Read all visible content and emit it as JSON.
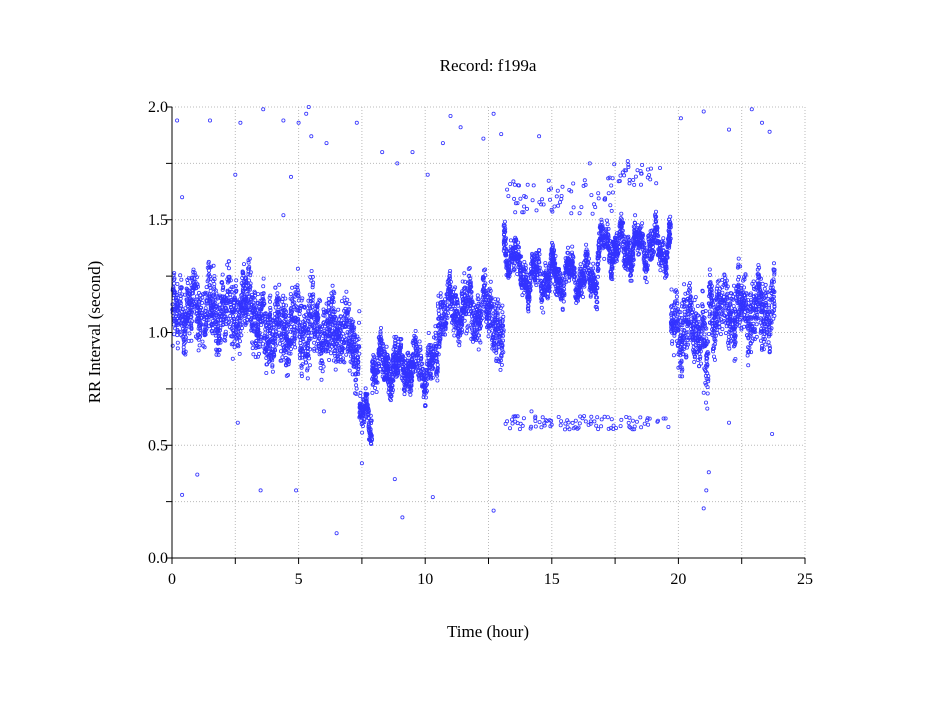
{
  "chart_data": {
    "type": "scatter",
    "title": "Record:  f199a",
    "xlabel": "Time (hour)",
    "ylabel": "RR Interval (second)",
    "xlim": [
      0,
      25
    ],
    "ylim": [
      0,
      2.0
    ],
    "xticks": [
      "0",
      "5",
      "10",
      "15",
      "20",
      "25"
    ],
    "xtick_values": [
      0,
      5,
      10,
      15,
      20,
      25
    ],
    "yticks": [
      "0.0",
      "0.5",
      "1.0",
      "1.5",
      "2.0"
    ],
    "ytick_values": [
      0,
      0.5,
      1.0,
      1.5,
      2.0
    ],
    "grid": true,
    "grid_step_x": 2.5,
    "grid_step_y": 0.25,
    "marker_color": "#3333ff",
    "series": [
      {
        "name": "RR intervals",
        "trend_segments_hours_center_halfspread": [
          [
            0.0,
            0.3,
            1.05,
            0.2
          ],
          [
            0.3,
            3.0,
            1.1,
            0.2
          ],
          [
            3.0,
            3.3,
            1.15,
            0.22
          ],
          [
            3.3,
            6.8,
            1.02,
            0.22
          ],
          [
            6.8,
            7.4,
            0.95,
            0.2
          ],
          [
            7.4,
            7.9,
            0.62,
            0.1
          ],
          [
            7.9,
            10.5,
            0.85,
            0.13
          ],
          [
            10.5,
            12.8,
            1.1,
            0.15
          ],
          [
            12.8,
            13.1,
            0.95,
            0.2
          ],
          [
            13.1,
            13.6,
            1.36,
            0.1
          ],
          [
            13.6,
            16.8,
            1.25,
            0.1
          ],
          [
            16.8,
            19.7,
            1.38,
            0.1
          ],
          [
            19.7,
            21.0,
            1.03,
            0.2
          ],
          [
            21.0,
            21.2,
            0.85,
            0.3
          ],
          [
            21.2,
            23.8,
            1.1,
            0.2
          ]
        ],
        "outlier_bands": [
          [
            13.0,
            19.7,
            0.6,
            0.03
          ],
          [
            13.0,
            17.5,
            1.6,
            0.08
          ],
          [
            17.0,
            19.3,
            1.7,
            0.05
          ]
        ],
        "outliers": [
          [
            0.2,
            1.94
          ],
          [
            0.4,
            1.6
          ],
          [
            1.5,
            1.94
          ],
          [
            2.5,
            1.7
          ],
          [
            2.7,
            1.93
          ],
          [
            3.6,
            1.99
          ],
          [
            4.4,
            1.94
          ],
          [
            5.0,
            1.93
          ],
          [
            5.3,
            1.97
          ],
          [
            5.4,
            2.0
          ],
          [
            5.5,
            1.87
          ],
          [
            4.7,
            1.69
          ],
          [
            4.4,
            1.52
          ],
          [
            6.1,
            1.84
          ],
          [
            7.3,
            1.93
          ],
          [
            8.3,
            1.8
          ],
          [
            8.9,
            1.75
          ],
          [
            9.5,
            1.8
          ],
          [
            10.1,
            1.7
          ],
          [
            10.7,
            1.84
          ],
          [
            11.0,
            1.96
          ],
          [
            11.4,
            1.91
          ],
          [
            12.3,
            1.86
          ],
          [
            12.7,
            1.97
          ],
          [
            13.0,
            1.88
          ],
          [
            14.5,
            1.87
          ],
          [
            16.5,
            1.75
          ],
          [
            18.0,
            1.76
          ],
          [
            20.1,
            1.95
          ],
          [
            21.0,
            1.98
          ],
          [
            22.0,
            1.9
          ],
          [
            22.9,
            1.99
          ],
          [
            23.3,
            1.93
          ],
          [
            23.6,
            1.89
          ],
          [
            6.5,
            0.11
          ],
          [
            9.1,
            0.18
          ],
          [
            12.7,
            0.21
          ],
          [
            0.4,
            0.28
          ],
          [
            4.9,
            0.3
          ],
          [
            21.0,
            0.22
          ],
          [
            21.1,
            0.3
          ],
          [
            21.2,
            0.38
          ],
          [
            3.5,
            0.3
          ],
          [
            8.8,
            0.35
          ],
          [
            1.0,
            0.37
          ],
          [
            14.2,
            0.65
          ],
          [
            2.6,
            0.6
          ],
          [
            6.0,
            0.65
          ],
          [
            7.5,
            0.42
          ],
          [
            10.3,
            0.27
          ],
          [
            22.0,
            0.6
          ],
          [
            23.7,
            0.55
          ]
        ]
      }
    ]
  }
}
